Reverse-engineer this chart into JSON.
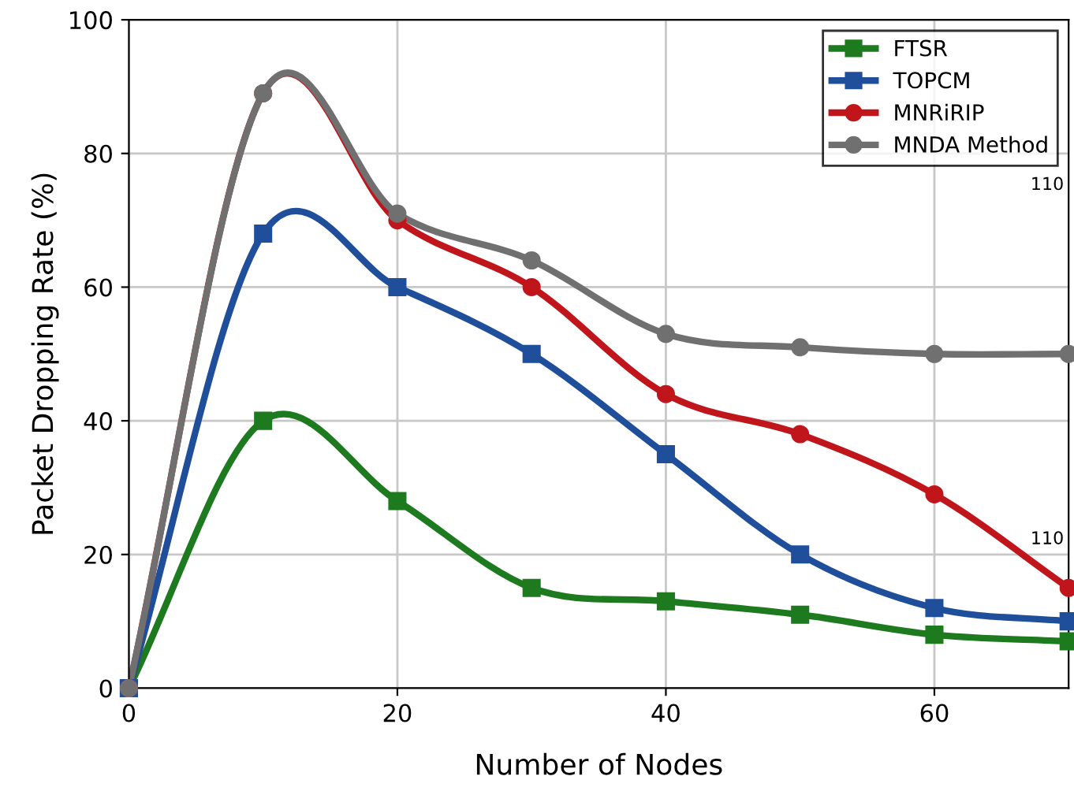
{
  "chart_data": {
    "type": "line",
    "xlabel": "Number of Nodes",
    "ylabel": "Packet Dropping Rate (%)",
    "x": [
      0,
      10,
      20,
      30,
      40,
      50,
      60,
      70
    ],
    "series": [
      {
        "name": "FTSR",
        "color": "#1e7a1e",
        "marker": "square",
        "values": [
          0,
          40,
          28,
          15,
          13,
          11,
          8,
          7
        ]
      },
      {
        "name": "TOPCM",
        "color": "#1f4e9a",
        "marker": "square",
        "values": [
          0,
          68,
          60,
          50,
          35,
          20,
          12,
          10
        ]
      },
      {
        "name": "MNRiRIP",
        "color": "#c0161b",
        "marker": "circle",
        "values": [
          0,
          89,
          70,
          60,
          44,
          38,
          29,
          15
        ]
      },
      {
        "name": "MNDA Method",
        "color": "#707070",
        "marker": "circle",
        "values": [
          0,
          89,
          71,
          64,
          53,
          51,
          50,
          50
        ]
      }
    ],
    "xlim": [
      0,
      70
    ],
    "ylim": [
      0,
      100
    ],
    "xticks": [
      0,
      20,
      40,
      60
    ],
    "yticks": [
      0,
      20,
      40,
      60,
      80,
      100
    ],
    "grid": true,
    "legend": "top right",
    "line_style": "solid",
    "annotations": [
      "110",
      "110"
    ]
  }
}
